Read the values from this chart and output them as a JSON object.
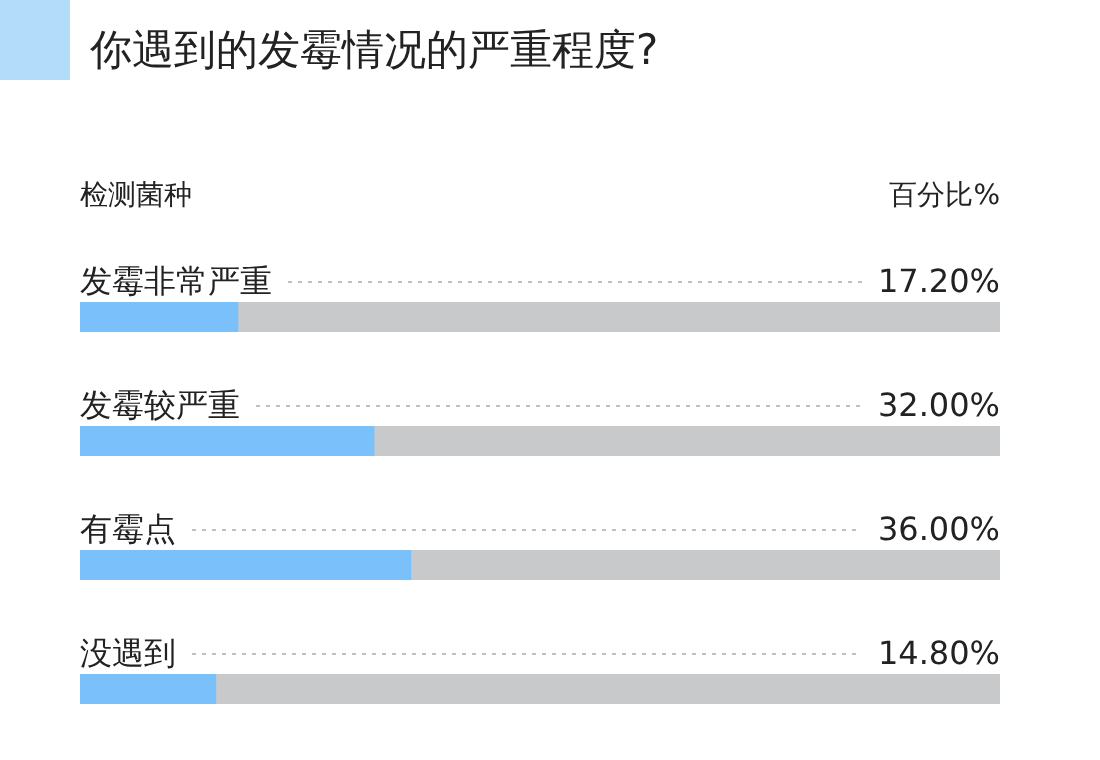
{
  "chart_data": {
    "type": "bar",
    "orientation": "horizontal",
    "title": "你遇到的发霉情况的严重程度?",
    "ylabel": "检测菌种",
    "xlabel": "百分比%",
    "categories": [
      "发霉非常严重",
      "发霉较严重",
      "有霉点",
      "没遇到"
    ],
    "values": [
      17.2,
      32,
      36,
      14.8
    ],
    "value_labels": [
      "17.20%",
      "32.00%",
      "36.00%",
      "14.80%"
    ],
    "color": "#7ac1fb",
    "xlim": [
      0,
      100
    ],
    "tick_labels": "y"
  }
}
